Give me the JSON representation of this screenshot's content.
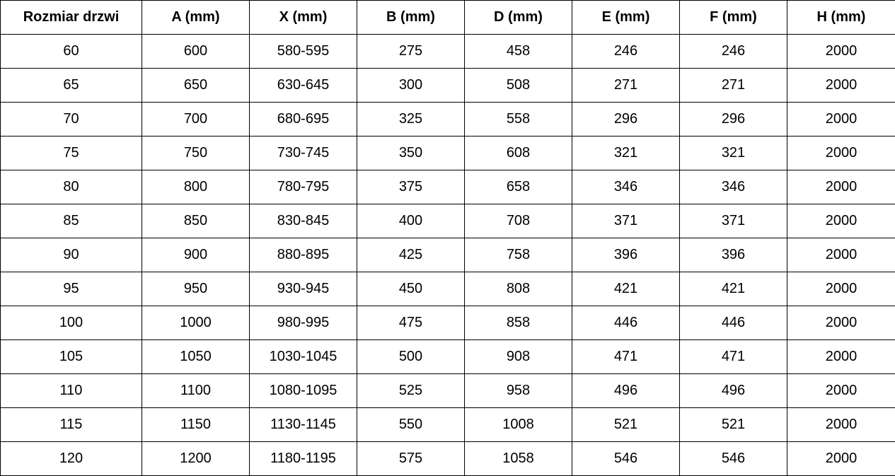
{
  "table": {
    "headers": [
      "Rozmiar drzwi",
      "A (mm)",
      "X (mm)",
      "B (mm)",
      "D (mm)",
      "E (mm)",
      "F (mm)",
      "H (mm)"
    ],
    "rows": [
      [
        "60",
        "600",
        "580-595",
        "275",
        "458",
        "246",
        "246",
        "2000"
      ],
      [
        "65",
        "650",
        "630-645",
        "300",
        "508",
        "271",
        "271",
        "2000"
      ],
      [
        "70",
        "700",
        "680-695",
        "325",
        "558",
        "296",
        "296",
        "2000"
      ],
      [
        "75",
        "750",
        "730-745",
        "350",
        "608",
        "321",
        "321",
        "2000"
      ],
      [
        "80",
        "800",
        "780-795",
        "375",
        "658",
        "346",
        "346",
        "2000"
      ],
      [
        "85",
        "850",
        "830-845",
        "400",
        "708",
        "371",
        "371",
        "2000"
      ],
      [
        "90",
        "900",
        "880-895",
        "425",
        "758",
        "396",
        "396",
        "2000"
      ],
      [
        "95",
        "950",
        "930-945",
        "450",
        "808",
        "421",
        "421",
        "2000"
      ],
      [
        "100",
        "1000",
        "980-995",
        "475",
        "858",
        "446",
        "446",
        "2000"
      ],
      [
        "105",
        "1050",
        "1030-1045",
        "500",
        "908",
        "471",
        "471",
        "2000"
      ],
      [
        "110",
        "1100",
        "1080-1095",
        "525",
        "958",
        "496",
        "496",
        "2000"
      ],
      [
        "115",
        "1150",
        "1130-1145",
        "550",
        "1008",
        "521",
        "521",
        "2000"
      ],
      [
        "120",
        "1200",
        "1180-1195",
        "575",
        "1058",
        "546",
        "546",
        "2000"
      ]
    ]
  }
}
